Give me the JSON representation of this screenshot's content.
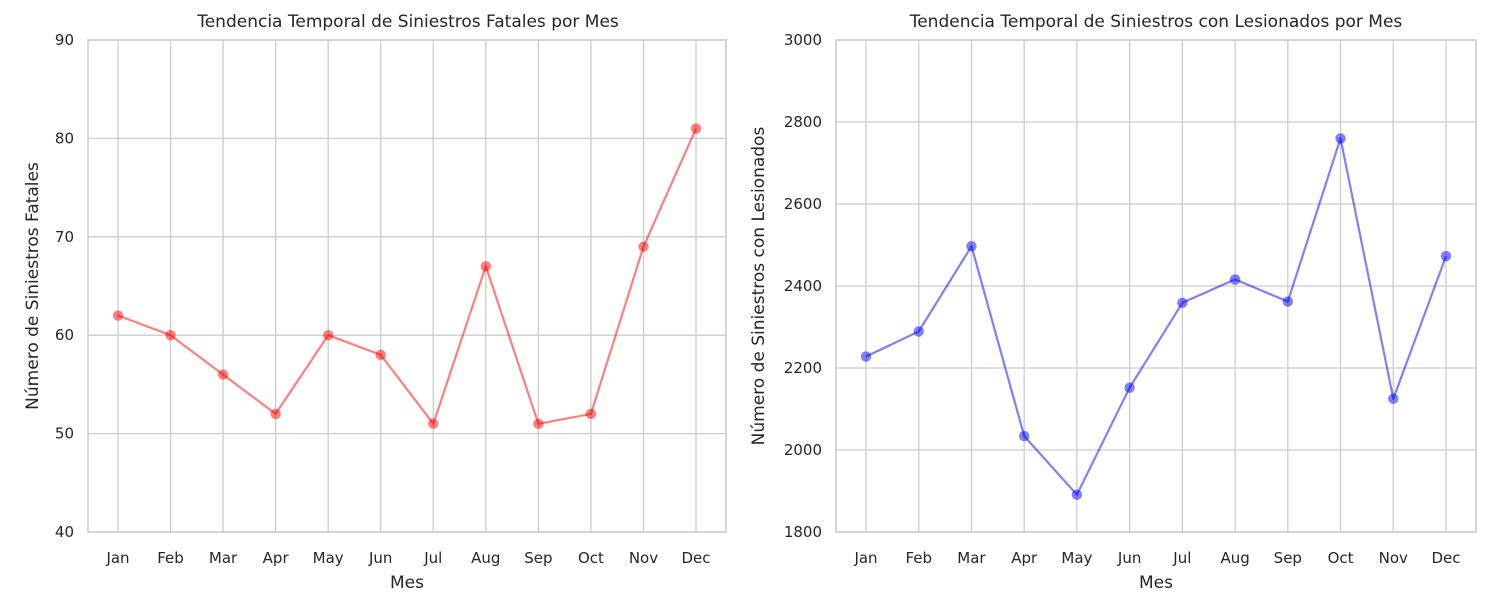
{
  "chart_data": [
    {
      "type": "line",
      "title": "Tendencia Temporal de Siniestros Fatales por Mes",
      "xlabel": "Mes",
      "ylabel": "Número de Siniestros Fatales",
      "categories": [
        "Jan",
        "Feb",
        "Mar",
        "Apr",
        "May",
        "Jun",
        "Jul",
        "Aug",
        "Sep",
        "Oct",
        "Nov",
        "Dec"
      ],
      "series": [
        {
          "values": [
            62,
            60,
            56,
            52,
            60,
            58,
            51,
            67,
            51,
            52,
            69,
            81
          ],
          "color": "#ff0000",
          "opacity": 0.5,
          "marker": "circle"
        }
      ],
      "ylim": [
        40,
        90
      ],
      "yticks": [
        40,
        50,
        60,
        70,
        80,
        90
      ],
      "grid": true
    },
    {
      "type": "line",
      "title": "Tendencia Temporal de Siniestros con Lesionados por Mes",
      "xlabel": "Mes",
      "ylabel": "Número de Siniestros con Lesionados",
      "categories": [
        "Jan",
        "Feb",
        "Mar",
        "Apr",
        "May",
        "Jun",
        "Jul",
        "Aug",
        "Sep",
        "Oct",
        "Nov",
        "Dec"
      ],
      "series": [
        {
          "values": [
            2228,
            2289,
            2497,
            2034,
            1891,
            2152,
            2359,
            2416,
            2362,
            2760,
            2125,
            2473
          ],
          "color": "#0000ff",
          "opacity": 0.5,
          "marker": "circle"
        }
      ],
      "ylim": [
        1800,
        3000
      ],
      "yticks": [
        1800,
        2000,
        2200,
        2400,
        2600,
        2800,
        3000
      ],
      "grid": true
    }
  ]
}
